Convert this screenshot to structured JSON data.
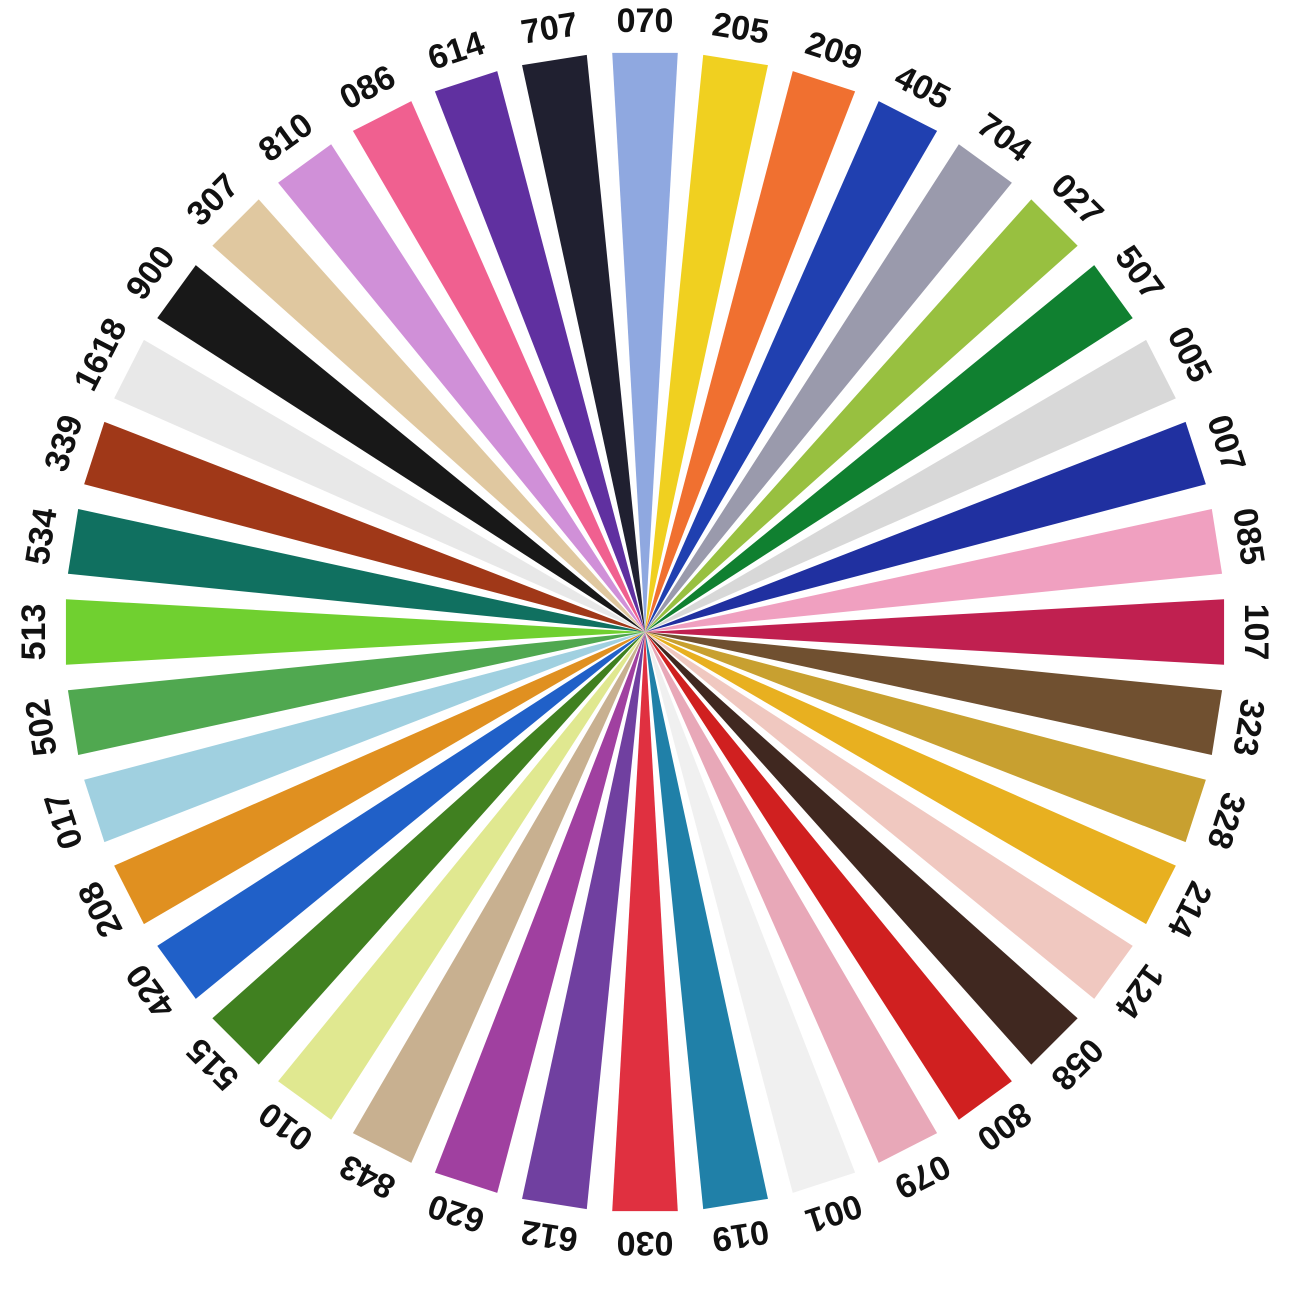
{
  "wheel": {
    "swatches": [
      {
        "code": "070",
        "color": "#8fa8e0"
      },
      {
        "code": "205",
        "color": "#f0d020"
      },
      {
        "code": "209",
        "color": "#f07030"
      },
      {
        "code": "405",
        "color": "#2040b0"
      },
      {
        "code": "704",
        "color": "#9a9aac"
      },
      {
        "code": "027",
        "color": "#98c040"
      },
      {
        "code": "507",
        "color": "#108030"
      },
      {
        "code": "005",
        "color": "#d8d8d8"
      },
      {
        "code": "007",
        "color": "#2030a0"
      },
      {
        "code": "085",
        "color": "#f0a0c0"
      },
      {
        "code": "107",
        "color": "#c02050"
      },
      {
        "code": "323",
        "color": "#705030"
      },
      {
        "code": "328",
        "color": "#c8a030"
      },
      {
        "code": "214",
        "color": "#e8b020"
      },
      {
        "code": "124",
        "color": "#f0c8c0"
      },
      {
        "code": "058",
        "color": "#402820"
      },
      {
        "code": "800",
        "color": "#d02020"
      },
      {
        "code": "079",
        "color": "#e8a8b8"
      },
      {
        "code": "001",
        "color": "#f0f0f0"
      },
      {
        "code": "019",
        "color": "#2080a8"
      },
      {
        "code": "030",
        "color": "#e03040"
      },
      {
        "code": "612",
        "color": "#7040a0"
      },
      {
        "code": "620",
        "color": "#a040a0"
      },
      {
        "code": "843",
        "color": "#c8b090"
      },
      {
        "code": "010",
        "color": "#e0e890"
      },
      {
        "code": "515",
        "color": "#408020"
      },
      {
        "code": "420",
        "color": "#2060c8"
      },
      {
        "code": "208",
        "color": "#e09020"
      },
      {
        "code": "017",
        "color": "#a0d0e0"
      },
      {
        "code": "502",
        "color": "#50a850"
      },
      {
        "code": "513",
        "color": "#70d030"
      },
      {
        "code": "534",
        "color": "#107060"
      },
      {
        "code": "339",
        "color": "#a03818"
      },
      {
        "code": "1618",
        "color": "#e8e8e8"
      },
      {
        "code": "900",
        "color": "#181818"
      },
      {
        "code": "307",
        "color": "#e0c8a0"
      },
      {
        "code": "810",
        "color": "#d090d8"
      },
      {
        "code": "086",
        "color": "#f06090"
      },
      {
        "code": "614",
        "color": "#6030a0"
      },
      {
        "code": "707",
        "color": "#202030"
      }
    ]
  }
}
